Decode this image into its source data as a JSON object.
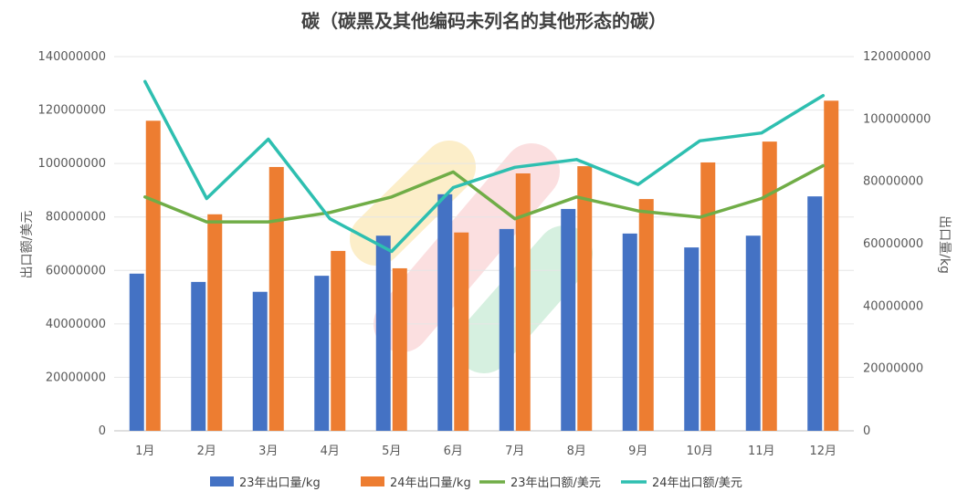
{
  "chart_data": {
    "type": "bar",
    "title": "碳（碳黑及其他编码未列名的其他形态的碳）",
    "categories": [
      "1月",
      "2月",
      "3月",
      "4月",
      "5月",
      "6月",
      "7月",
      "8月",
      "9月",
      "10月",
      "11月",
      "12月"
    ],
    "ylabel": "出口额/美元",
    "y2label": "出口量/kg",
    "ylim": [
      0,
      140000000
    ],
    "y2lim": [
      0,
      120000000
    ],
    "yticks": [
      "0",
      "20000000",
      "40000000",
      "60000000",
      "80000000",
      "100000000",
      "120000000",
      "140000000"
    ],
    "y2ticks": [
      "0",
      "20000000",
      "40000000",
      "60000000",
      "80000000",
      "100000000",
      "120000000"
    ],
    "grid": true,
    "legend_position": "bottom",
    "series": [
      {
        "name": "23年出口量/kg",
        "type": "bar",
        "axis": "left",
        "color": "#4472C4",
        "values": [
          58800000,
          55700000,
          52000000,
          58000000,
          73000000,
          88500000,
          75500000,
          83000000,
          73800000,
          68600000,
          73000000,
          87700000
        ]
      },
      {
        "name": "24年出口量/kg",
        "type": "bar",
        "axis": "left",
        "color": "#ED7D31",
        "values": [
          116000000,
          81000000,
          98700000,
          67300000,
          60800000,
          74200000,
          96300000,
          99000000,
          86700000,
          100400000,
          108200000,
          123500000
        ]
      },
      {
        "name": "23年出口额/美元",
        "type": "line",
        "axis": "right",
        "color": "#70AD47",
        "values": [
          75000000,
          67000000,
          67000000,
          70000000,
          75000000,
          83000000,
          68000000,
          75000000,
          70500000,
          68500000,
          74500000,
          85000000
        ]
      },
      {
        "name": "24年出口额/美元",
        "type": "line",
        "axis": "right",
        "color": "#2EBFB0",
        "values": [
          112000000,
          74500000,
          93500000,
          68000000,
          57500000,
          78000000,
          84500000,
          87000000,
          79000000,
          93000000,
          95500000,
          107500000
        ]
      }
    ]
  }
}
